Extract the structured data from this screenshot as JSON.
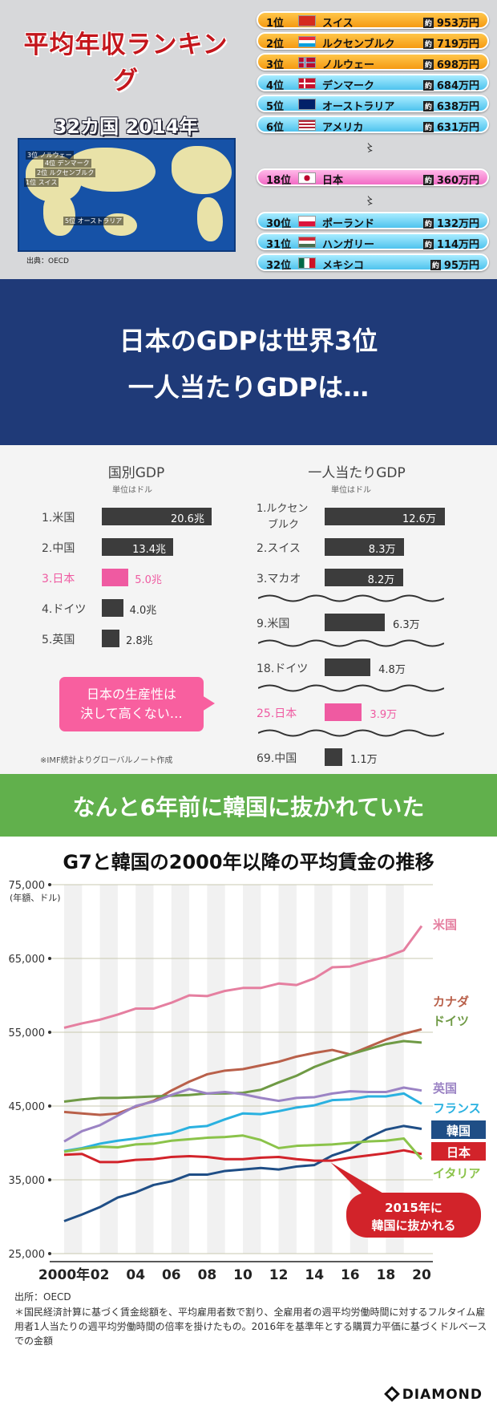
{
  "ranking": {
    "title": "平均年収ランキング",
    "subtitle": "32カ国 2014年",
    "source": "出典：OECD",
    "approx_label": "約",
    "gap_mark": "〻",
    "rows": [
      {
        "rank": "1位",
        "country": "スイス",
        "amount": "953万円",
        "style": "orange",
        "flag": "ch"
      },
      {
        "rank": "2位",
        "country": "ルクセンブルク",
        "amount": "719万円",
        "style": "orange",
        "flag": "lu"
      },
      {
        "rank": "3位",
        "country": "ノルウェー",
        "amount": "698万円",
        "style": "orange",
        "flag": "no"
      },
      {
        "rank": "4位",
        "country": "デンマーク",
        "amount": "684万円",
        "style": "blue",
        "flag": "dk"
      },
      {
        "rank": "5位",
        "country": "オーストラリア",
        "amount": "638万円",
        "style": "blue",
        "flag": "au"
      },
      {
        "rank": "6位",
        "country": "アメリカ",
        "amount": "631万円",
        "style": "blue",
        "flag": "us"
      },
      {
        "rank": "18位",
        "country": "日本",
        "amount": "360万円",
        "style": "pink",
        "flag": "jp"
      },
      {
        "rank": "30位",
        "country": "ポーランド",
        "amount": "132万円",
        "style": "blue",
        "flag": "pl"
      },
      {
        "rank": "31位",
        "country": "ハンガリー",
        "amount": "114万円",
        "style": "blue",
        "flag": "hu"
      },
      {
        "rank": "32位",
        "country": "メキシコ",
        "amount": "95万円",
        "style": "blue",
        "flag": "mx"
      }
    ],
    "map_labels": [
      {
        "text": "3位 ノルウェー",
        "pos": "nw"
      },
      {
        "text": "4位 デンマーク",
        "pos": "dk"
      },
      {
        "text": "2位 ルクセンブルク",
        "pos": "lu"
      },
      {
        "text": "1位 スイス",
        "pos": "ch"
      },
      {
        "text": "5位 オーストラリア",
        "pos": "au"
      }
    ]
  },
  "banner": {
    "line1": "日本のGDPは世界3位",
    "line2": "一人当たりGDPは…"
  },
  "gdp": {
    "left": {
      "title": "国別GDP",
      "unit": "単位はドル",
      "rows": [
        {
          "label": "1.米国",
          "value": 20.6,
          "text": "20.6兆",
          "hl": false
        },
        {
          "label": "2.中国",
          "value": 13.4,
          "text": "13.4兆",
          "hl": false
        },
        {
          "label": "3.日本",
          "value": 5.0,
          "text": "5.0兆",
          "hl": true
        },
        {
          "label": "4.ドイツ",
          "value": 4.0,
          "text": "4.0兆",
          "hl": false
        },
        {
          "label": "5.英国",
          "value": 2.8,
          "text": "2.8兆",
          "hl": false
        }
      ]
    },
    "right": {
      "title": "一人当たりGDP",
      "unit": "単位はドル",
      "rows": [
        {
          "label": "1.ルクセンブルク",
          "label_a": "ルクセン",
          "label_b": "ブルク",
          "value": 12.6,
          "text": "12.6万",
          "hl": false
        },
        {
          "label": "2.スイス",
          "value": 8.3,
          "text": "8.3万",
          "hl": false
        },
        {
          "label": "3.マカオ",
          "value": 8.2,
          "text": "8.2万",
          "hl": false
        },
        {
          "label": "9.米国",
          "value": 6.3,
          "text": "6.3万",
          "hl": false
        },
        {
          "label": "18.ドイツ",
          "value": 4.8,
          "text": "4.8万",
          "hl": false
        },
        {
          "label": "25.日本",
          "value": 3.9,
          "text": "3.9万",
          "hl": true
        },
        {
          "label": "69.中国",
          "value": 1.1,
          "text": "1.1万",
          "hl": false
        }
      ]
    },
    "callout_line1": "日本の生産性は",
    "callout_line2": "決して高くない…",
    "note": "※IMF統計よりグローバルノート作成"
  },
  "headline": "なんと6年前に韓国に抜かれていた",
  "wage": {
    "title": "G7と韓国の2000年以降の平均賃金の推移",
    "source": "出所：OECD",
    "note": "＊国民経済計算に基づく賃金総額を、平均雇用者数で割り、全雇用者の週平均労働時間に対するフルタイム雇用者1人当たりの週平均労働時間の倍率を掛けたもの。2016年を基準年とする購買力平価に基づくドルベースでの金額",
    "callout_line1": "2015年に",
    "callout_line2": "韓国に抜かれる",
    "brand": "DIAMOND"
  },
  "chart_data": {
    "type": "line",
    "title": "G7と韓国の2000年以降の平均賃金の推移",
    "ylabel": "(年額、ドル)",
    "xlabel": "",
    "ylim": [
      25000,
      75000
    ],
    "xlim": [
      2000,
      2020
    ],
    "yticks": [
      25000,
      35000,
      45000,
      55000,
      65000,
      75000
    ],
    "ytick_labels": [
      "25,000",
      "35,000",
      "45,000",
      "55,000",
      "65,000",
      "75,000"
    ],
    "xticks": [
      2000,
      2002,
      2004,
      2006,
      2008,
      2010,
      2012,
      2014,
      2016,
      2018,
      2020
    ],
    "xtick_labels": [
      "2000年",
      "02",
      "04",
      "06",
      "08",
      "10",
      "12",
      "14",
      "16",
      "18",
      "20"
    ],
    "grid": true,
    "legend": "right-side labels",
    "x": [
      2000,
      2001,
      2002,
      2003,
      2004,
      2005,
      2006,
      2007,
      2008,
      2009,
      2010,
      2011,
      2012,
      2013,
      2014,
      2015,
      2016,
      2017,
      2018,
      2019,
      2020
    ],
    "series": [
      {
        "name": "米国",
        "color": "#e57fa0",
        "values": [
          55600,
          56200,
          56700,
          57400,
          58200,
          58200,
          59000,
          60000,
          59900,
          60600,
          61000,
          61000,
          61600,
          61400,
          62300,
          63800,
          63900,
          64600,
          65200,
          66100,
          69400
        ]
      },
      {
        "name": "カナダ",
        "color": "#b9604a",
        "values": [
          44200,
          44000,
          43800,
          44000,
          44900,
          45700,
          47100,
          48300,
          49300,
          49800,
          50000,
          50500,
          51000,
          51700,
          52200,
          52600,
          52000,
          53000,
          54000,
          54800,
          55400
        ]
      },
      {
        "name": "ドイツ",
        "color": "#6f9a45",
        "values": [
          45600,
          45900,
          46100,
          46100,
          46200,
          46300,
          46400,
          46500,
          46700,
          46700,
          46800,
          47200,
          48200,
          49100,
          50300,
          51200,
          52000,
          52700,
          53400,
          53800,
          53600
        ]
      },
      {
        "name": "英国",
        "color": "#9b83c4",
        "values": [
          40200,
          41600,
          42400,
          43700,
          45000,
          45600,
          46500,
          47300,
          46700,
          46900,
          46600,
          46100,
          45700,
          46100,
          46200,
          46700,
          47000,
          46900,
          46900,
          47500,
          47100
        ]
      },
      {
        "name": "フランス",
        "color": "#2ab1e0",
        "values": [
          38900,
          39300,
          39900,
          40300,
          40600,
          41000,
          41300,
          42100,
          42300,
          43200,
          44000,
          43900,
          44300,
          44800,
          45100,
          45800,
          45900,
          46300,
          46300,
          46700,
          45300
        ]
      },
      {
        "name": "韓国",
        "color": "#1f4e86",
        "values": [
          29400,
          30300,
          31300,
          32600,
          33300,
          34300,
          34800,
          35700,
          35700,
          36200,
          36400,
          36600,
          36400,
          36800,
          37000,
          38300,
          39100,
          40700,
          41800,
          42300,
          41900
        ]
      },
      {
        "name": "日本",
        "color": "#d2232a",
        "values": [
          38400,
          38500,
          37400,
          37400,
          37700,
          37800,
          38100,
          38200,
          38100,
          37800,
          37800,
          38000,
          38100,
          37800,
          37600,
          37600,
          38000,
          38300,
          38600,
          39000,
          38500
        ]
      },
      {
        "name": "イタリア",
        "color": "#8bc34a",
        "values": [
          38800,
          39200,
          39500,
          39400,
          39800,
          39900,
          40300,
          40500,
          40700,
          40800,
          41000,
          40400,
          39300,
          39600,
          39700,
          39800,
          40000,
          40200,
          40300,
          40600,
          37800
        ]
      }
    ],
    "annotations": [
      "2015年に 韓国に抜かれる"
    ]
  }
}
